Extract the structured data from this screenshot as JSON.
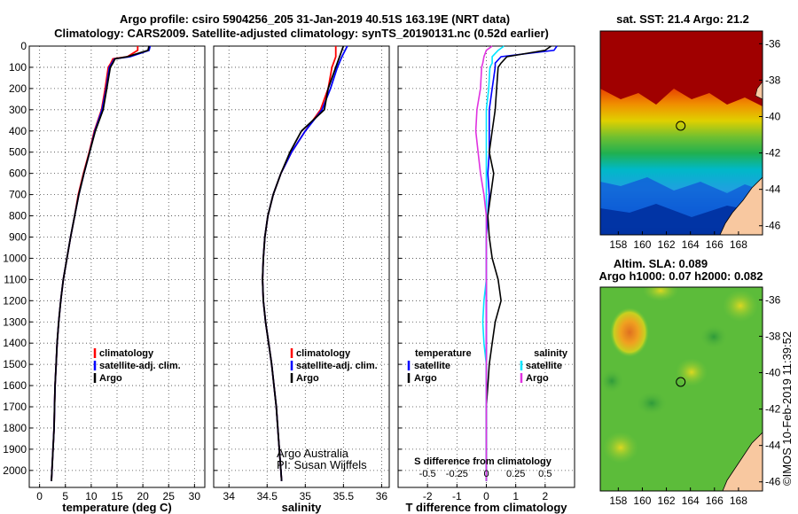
{
  "header": {
    "line1": "Argo profile: csiro 5904256_205 31-Jan-2019 40.51S 163.19E (NRT data)",
    "line2": "Climatology: CARS2009. Satellite-adjusted climatology: synTS_20190131.nc (0.52d earlier)"
  },
  "depth_ticks": [
    "0",
    "100",
    "200",
    "300",
    "400",
    "500",
    "600",
    "700",
    "800",
    "900",
    "1000",
    "1100",
    "1200",
    "1300",
    "1400",
    "1500",
    "1600",
    "1700",
    "1800",
    "1900",
    "2000"
  ],
  "colors": {
    "climatology": "#ff0000",
    "satellite": "#0000ff",
    "argo": "#000000",
    "sal_satellite": "#00e5ff",
    "sal_argo": "#e033e0"
  },
  "chart_data": [
    {
      "type": "line",
      "xlabel": "temperature (deg C)",
      "xlim": [
        -2,
        32
      ],
      "xticks": [
        0,
        5,
        10,
        15,
        20,
        25,
        30
      ],
      "ylim": [
        2080,
        0
      ],
      "y_reversed": true,
      "legend": [
        "climatology",
        "satellite-adj. clim.",
        "Argo"
      ],
      "legend_position": "lower-center",
      "series": [
        {
          "name": "climatology",
          "y": [
            0,
            20,
            50,
            60,
            80,
            100,
            200,
            300,
            400,
            500,
            600,
            700,
            800,
            900,
            1000,
            1100,
            1200,
            1300,
            1400,
            1500,
            1600,
            1700,
            1800,
            1900,
            2000,
            2050
          ],
          "x": [
            19.0,
            19.0,
            17.0,
            14.2,
            13.8,
            13.3,
            12.7,
            12.0,
            10.6,
            9.6,
            8.5,
            7.5,
            6.8,
            6.0,
            5.3,
            4.6,
            4.1,
            3.7,
            3.4,
            3.2,
            3.0,
            2.9,
            2.8,
            2.6,
            2.4,
            2.3
          ]
        },
        {
          "name": "satellite-adj. clim.",
          "y": [
            0,
            20,
            50,
            60,
            80,
            100,
            200,
            300,
            400,
            500,
            600,
            700,
            800,
            900,
            1000,
            1100,
            1200,
            1300,
            1400,
            1500,
            1600,
            1700,
            1800,
            1900,
            2000,
            2050
          ],
          "x": [
            21.4,
            21.2,
            17.5,
            14.5,
            14.0,
            13.5,
            12.9,
            12.1,
            10.7,
            9.7,
            8.6,
            7.6,
            6.8,
            6.0,
            5.3,
            4.6,
            4.1,
            3.7,
            3.4,
            3.2,
            3.0,
            2.9,
            2.8,
            2.6,
            2.4,
            2.3
          ]
        },
        {
          "name": "Argo",
          "y": [
            0,
            20,
            50,
            60,
            80,
            100,
            200,
            300,
            400,
            500,
            600,
            700,
            800,
            900,
            1000,
            1100,
            1200,
            1300,
            1400,
            1500,
            1600,
            1700,
            1800,
            1900,
            2000,
            2050
          ],
          "x": [
            21.2,
            21.0,
            17.0,
            14.6,
            14.2,
            13.7,
            13.0,
            12.3,
            10.8,
            9.7,
            8.6,
            7.6,
            6.8,
            6.0,
            5.3,
            4.6,
            4.1,
            3.7,
            3.4,
            3.2,
            3.0,
            2.9,
            2.8,
            2.6,
            2.4,
            2.3
          ]
        }
      ]
    },
    {
      "type": "line",
      "xlabel": "salinity",
      "xlim": [
        33.8,
        36.1
      ],
      "xticks": [
        34,
        34.5,
        35,
        35.5,
        36
      ],
      "xtick_labels": [
        "34",
        "34.5",
        "35",
        "35.5",
        "36"
      ],
      "ylim": [
        2080,
        0
      ],
      "legend": [
        "climatology",
        "satellite-adj. clim.",
        "Argo"
      ],
      "legend_position": "lower-right",
      "annotation": [
        "Argo Australia",
        "PI: Susan Wijffels"
      ],
      "series": [
        {
          "name": "climatology",
          "y": [
            0,
            50,
            100,
            200,
            300,
            400,
            500,
            600,
            700,
            800,
            900,
            1000,
            1100,
            1200,
            1300,
            1400,
            1500,
            1600,
            1700,
            1800,
            1900,
            2000,
            2050
          ],
          "x": [
            35.4,
            35.4,
            35.35,
            35.3,
            35.2,
            35.0,
            34.82,
            34.68,
            34.58,
            34.51,
            34.47,
            34.45,
            34.44,
            34.45,
            34.48,
            34.52,
            34.56,
            34.59,
            34.62,
            34.64,
            34.66,
            34.68,
            34.69
          ]
        },
        {
          "name": "satellite-adj. clim.",
          "y": [
            0,
            50,
            100,
            200,
            300,
            400,
            500,
            600,
            700,
            800,
            900,
            1000,
            1100,
            1200,
            1300,
            1400,
            1500,
            1600,
            1700,
            1800,
            1900,
            2000,
            2050
          ],
          "x": [
            35.55,
            35.48,
            35.42,
            35.33,
            35.22,
            35.0,
            34.82,
            34.68,
            34.58,
            34.51,
            34.47,
            34.45,
            34.44,
            34.45,
            34.48,
            34.52,
            34.56,
            34.59,
            34.62,
            34.64,
            34.66,
            34.68,
            34.69
          ]
        },
        {
          "name": "Argo",
          "y": [
            0,
            50,
            100,
            200,
            300,
            400,
            500,
            600,
            700,
            800,
            900,
            1000,
            1100,
            1200,
            1300,
            1400,
            1500,
            1600,
            1700,
            1800,
            1900,
            2000,
            2050
          ],
          "x": [
            35.5,
            35.45,
            35.4,
            35.3,
            35.25,
            34.95,
            34.8,
            34.68,
            34.58,
            34.51,
            34.47,
            34.45,
            34.44,
            34.45,
            34.48,
            34.52,
            34.56,
            34.59,
            34.62,
            34.64,
            34.66,
            34.68,
            34.69
          ]
        }
      ]
    },
    {
      "type": "line",
      "xlabel": "T difference from climatology",
      "xlabel_top": "S difference from climatology",
      "xlim": [
        -3.0,
        3.0
      ],
      "xticks": [
        -2,
        -1,
        0,
        1,
        2
      ],
      "top_ticks": [
        -0.5,
        -0.25,
        0,
        0.25,
        0.5
      ],
      "top_tick_labels": [
        "-0.5",
        "-0.25",
        "0",
        "0.25",
        "0.5"
      ],
      "ylim": [
        2080,
        0
      ],
      "legend_temperature": {
        "title": "temperature",
        "items": [
          "satellite",
          "Argo"
        ]
      },
      "legend_salinity": {
        "title": "salinity",
        "items": [
          "satellite",
          "Argo"
        ]
      },
      "series": [
        {
          "name": "temperature satellite",
          "y": [
            0,
            20,
            50,
            80,
            100,
            200,
            300,
            400,
            500,
            600,
            700,
            800,
            900,
            1000,
            1100,
            1200,
            1300,
            1400,
            1500,
            1600,
            1700,
            1800,
            1900,
            2000,
            2050
          ],
          "x": [
            2.4,
            2.3,
            0.5,
            0.3,
            0.3,
            0.2,
            0.1,
            0.1,
            0.1,
            0.05,
            0.1,
            0.05,
            0.0,
            0.0,
            0.0,
            0.0,
            0.0,
            0.0,
            0.0,
            0.0,
            0.0,
            0.0,
            0.0,
            0.0,
            0.0
          ]
        },
        {
          "name": "temperature Argo",
          "y": [
            0,
            20,
            50,
            80,
            100,
            200,
            300,
            400,
            500,
            600,
            700,
            800,
            900,
            1000,
            1100,
            1200,
            1300,
            1400,
            1500,
            1600,
            1700,
            1800,
            1900,
            2000,
            2050
          ],
          "x": [
            2.2,
            2.0,
            0.7,
            0.5,
            0.4,
            0.35,
            0.3,
            0.2,
            0.1,
            0.25,
            0.15,
            0.05,
            0.1,
            0.2,
            0.4,
            0.5,
            0.3,
            0.2,
            0.1,
            0.05,
            0.0,
            0.0,
            0.0,
            0.0,
            0.0
          ]
        },
        {
          "name": "salinity satellite",
          "y": [
            0,
            20,
            50,
            80,
            100,
            200,
            300,
            400,
            500,
            600,
            700,
            800,
            900,
            1000,
            1100,
            1200,
            1300,
            1400,
            1500,
            1600,
            1700,
            1800,
            1900,
            2000,
            2050
          ],
          "x": [
            0.15,
            0.1,
            0.05,
            0.05,
            0.03,
            0.02,
            0.0,
            0.0,
            0.0,
            0.0,
            0.0,
            0.0,
            0.0,
            0.0,
            0.0,
            -0.02,
            -0.03,
            -0.02,
            0.0,
            0.0,
            0.0,
            0.0,
            0.0,
            0.0,
            0.0
          ]
        },
        {
          "name": "salinity Argo",
          "y": [
            0,
            20,
            50,
            80,
            100,
            200,
            300,
            400,
            500,
            600,
            700,
            800,
            900,
            1000,
            1100,
            1200,
            1300,
            1400,
            1500,
            1600,
            1700,
            1800,
            1900,
            2000,
            2050
          ],
          "x": [
            0.05,
            0.0,
            -0.02,
            -0.03,
            -0.04,
            -0.05,
            -0.08,
            -0.09,
            -0.07,
            -0.05,
            -0.02,
            0.0,
            0.0,
            0.0,
            0.0,
            0.0,
            0.0,
            0.0,
            0.0,
            0.0,
            0.0,
            0.0,
            0.0,
            0.0,
            0.0
          ]
        }
      ]
    },
    {
      "type": "heatmap",
      "title": "sat. SST: 21.4 Argo: 21.2",
      "xticks": [
        158,
        160,
        162,
        164,
        166,
        168
      ],
      "yticks": [
        -36,
        -38,
        -40,
        -42,
        -44,
        -46
      ],
      "xlim": [
        156.5,
        170
      ],
      "ylim": [
        -46.5,
        -35.3
      ],
      "marker": {
        "lon": 163.19,
        "lat": -40.51
      }
    },
    {
      "type": "heatmap",
      "title_line1": "Altim. SLA: 0.089",
      "title_line2": "Argo h1000: 0.07 h2000: 0.082",
      "xticks": [
        158,
        160,
        162,
        164,
        166,
        168
      ],
      "yticks": [
        -36,
        -38,
        -40,
        -42,
        -44,
        -46
      ],
      "xlim": [
        156.5,
        170
      ],
      "ylim": [
        -46.5,
        -35.3
      ],
      "marker": {
        "lon": 163.19,
        "lat": -40.51
      }
    }
  ],
  "watermark": "©IMOS 10-Feb-2019 11:39:52"
}
